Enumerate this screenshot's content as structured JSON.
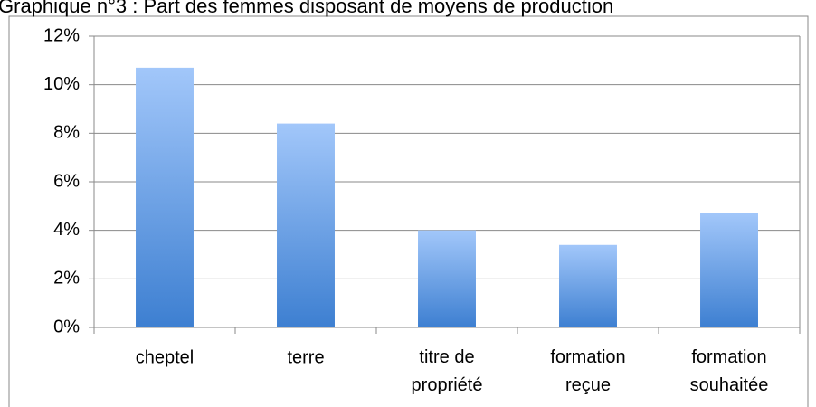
{
  "chart_data": {
    "type": "bar",
    "title": "Graphique n°3 : Part des femmes disposant de moyens de production",
    "categories": [
      "cheptel",
      "terre",
      "titre de propriété",
      "formation reçue",
      "formation souhaitée"
    ],
    "values": [
      10.7,
      8.4,
      4.0,
      3.4,
      4.7
    ],
    "color": "#3d7fd1",
    "ylim": [
      0,
      12
    ],
    "yticks": [
      {
        "value": 0,
        "label": "0%"
      },
      {
        "value": 2,
        "label": "2%"
      },
      {
        "value": 4,
        "label": "4%"
      },
      {
        "value": 6,
        "label": "6%"
      },
      {
        "value": 8,
        "label": "8%"
      },
      {
        "value": 10,
        "label": "10%"
      },
      {
        "value": 12,
        "label": "12%"
      }
    ],
    "grid": true
  }
}
